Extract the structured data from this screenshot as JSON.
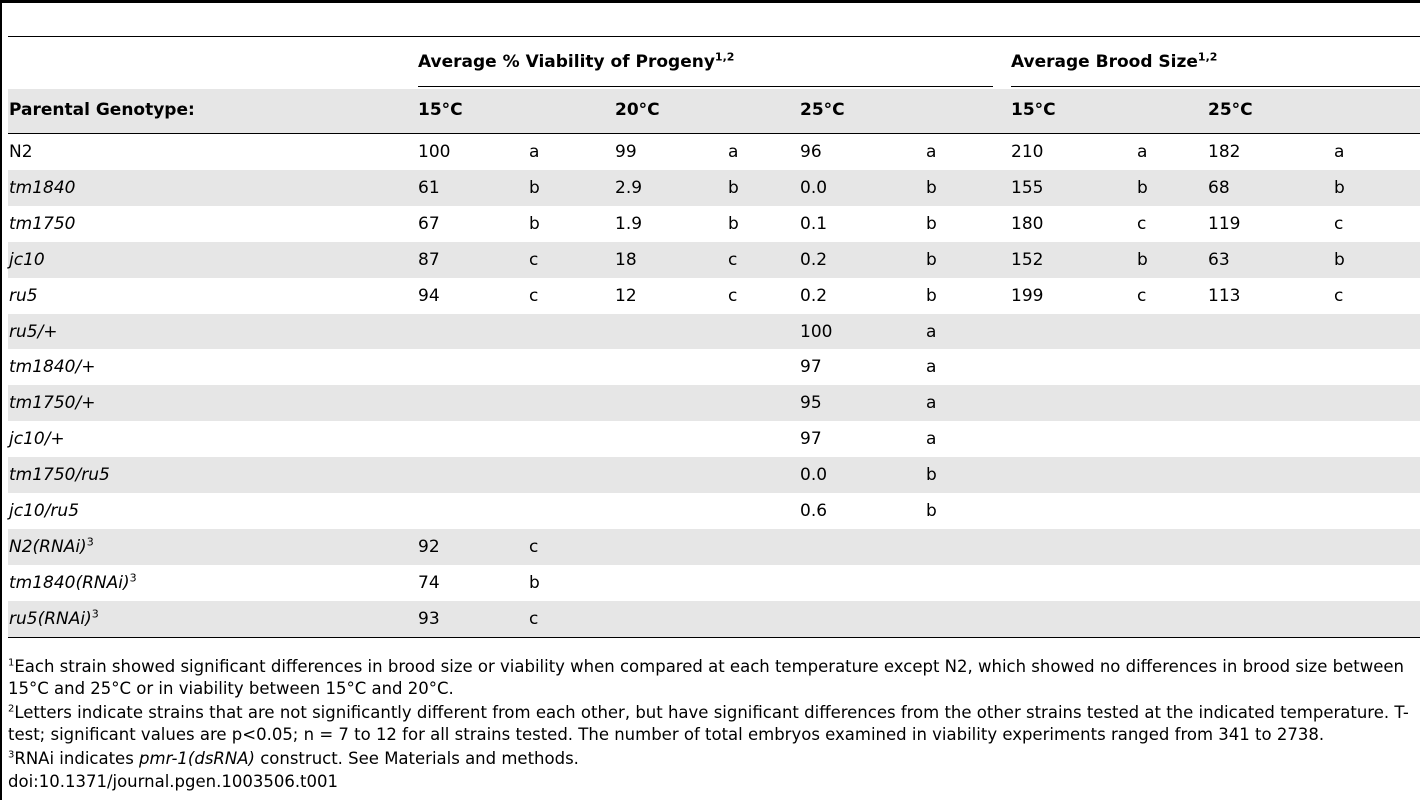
{
  "header": {
    "viability_group": "Average % Viability of Progeny",
    "viability_group_sup": "1,2",
    "brood_group": "Average Brood Size",
    "brood_group_sup": "1,2",
    "parental_label": "Parental Genotype:",
    "temps": [
      "15°C",
      "20°C",
      "25°C",
      "15°C",
      "25°C"
    ]
  },
  "rows": [
    {
      "genotype": "N2",
      "italic": false,
      "sup": "",
      "cells": [
        "100",
        "a",
        "99",
        "a",
        "96",
        "a",
        "210",
        "a",
        "182",
        "a"
      ]
    },
    {
      "genotype": "tm1840",
      "italic": true,
      "sup": "",
      "cells": [
        "61",
        "b",
        "2.9",
        "b",
        "0.0",
        "b",
        "155",
        "b",
        "68",
        "b"
      ]
    },
    {
      "genotype": "tm1750",
      "italic": true,
      "sup": "",
      "cells": [
        "67",
        "b",
        "1.9",
        "b",
        "0.1",
        "b",
        "180",
        "c",
        "119",
        "c"
      ]
    },
    {
      "genotype": "jc10",
      "italic": true,
      "sup": "",
      "cells": [
        "87",
        "c",
        "18",
        "c",
        "0.2",
        "b",
        "152",
        "b",
        "63",
        "b"
      ]
    },
    {
      "genotype": "ru5",
      "italic": true,
      "sup": "",
      "cells": [
        "94",
        "c",
        "12",
        "c",
        "0.2",
        "b",
        "199",
        "c",
        "113",
        "c"
      ]
    },
    {
      "genotype": "ru5/+",
      "italic": true,
      "sup": "",
      "cells": [
        "",
        "",
        "",
        "",
        "100",
        "a",
        "",
        "",
        "",
        ""
      ]
    },
    {
      "genotype": "tm1840/+",
      "italic": true,
      "sup": "",
      "cells": [
        "",
        "",
        "",
        "",
        "97",
        "a",
        "",
        "",
        "",
        ""
      ]
    },
    {
      "genotype": "tm1750/+",
      "italic": true,
      "sup": "",
      "cells": [
        "",
        "",
        "",
        "",
        "95",
        "a",
        "",
        "",
        "",
        ""
      ]
    },
    {
      "genotype": "jc10/+",
      "italic": true,
      "sup": "",
      "cells": [
        "",
        "",
        "",
        "",
        "97",
        "a",
        "",
        "",
        "",
        ""
      ]
    },
    {
      "genotype": "tm1750/ru5",
      "italic": true,
      "sup": "",
      "cells": [
        "",
        "",
        "",
        "",
        "0.0",
        "b",
        "",
        "",
        "",
        ""
      ]
    },
    {
      "genotype": "jc10/ru5",
      "italic": true,
      "sup": "",
      "cells": [
        "",
        "",
        "",
        "",
        "0.6",
        "b",
        "",
        "",
        "",
        ""
      ]
    },
    {
      "genotype": "N2(RNAi)",
      "italic": true,
      "sup": "3",
      "cells": [
        "92",
        "c",
        "",
        "",
        "",
        "",
        "",
        "",
        "",
        ""
      ]
    },
    {
      "genotype": "tm1840(RNAi)",
      "italic": true,
      "sup": "3",
      "cells": [
        "74",
        "b",
        "",
        "",
        "",
        "",
        "",
        "",
        "",
        ""
      ]
    },
    {
      "genotype": "ru5(RNAi)",
      "italic": true,
      "sup": "3",
      "cells": [
        "93",
        "c",
        "",
        "",
        "",
        "",
        "",
        "",
        "",
        ""
      ]
    }
  ],
  "footnotes": {
    "n1_mark": "1",
    "n1_text": "Each strain showed significant differences in brood size or viability when compared at each temperature except N2, which showed no differences in brood size between 15°C and 25°C or in viability between 15°C and 20°C.",
    "n2_mark": "2",
    "n2_line1": "Letters indicate strains that are not significantly different from each other, but have significant differences from the other strains tested at the indicated temperature. T-",
    "n2_line2": "test; significant values are p<0.05; n = 7 to 12 for all strains tested. The number of total embryos examined in viability experiments ranged from 341 to 2738.",
    "n3_mark": "3",
    "n3_before": "RNAi indicates ",
    "n3_italic": "pmr-1(dsRNA)",
    "n3_after": " construct. See Materials and methods.",
    "doi": "doi:10.1371/journal.pgen.1003506.t001"
  }
}
